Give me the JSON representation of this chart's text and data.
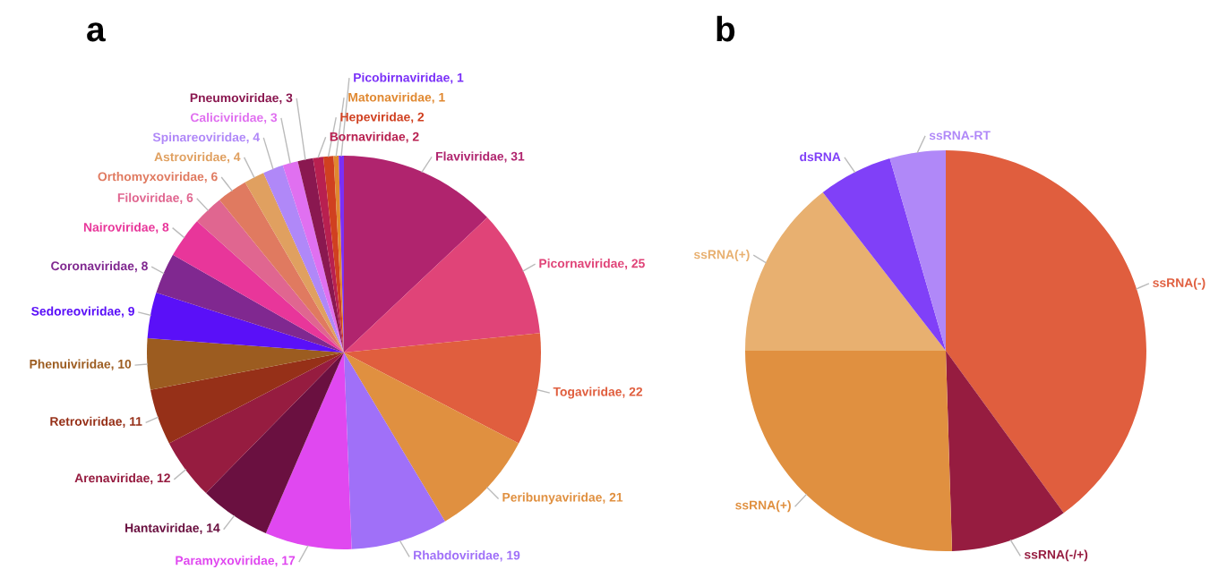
{
  "chart_data": [
    {
      "type": "pie",
      "title": "a",
      "legend": false,
      "categories": [
        "Flaviviridae",
        "Picornaviridae",
        "Togaviridae",
        "Peribunyaviridae",
        "Rhabdoviridae",
        "Paramyxoviridae",
        "Hantaviridae",
        "Arenaviridae",
        "Retroviridae",
        "Phenuiviridae",
        "Sedoreoviridae",
        "Coronaviridae",
        "Nairoviridae",
        "Filoviridae",
        "Orthomyxoviridae",
        "Astroviridae",
        "Spinareoviridae",
        "Caliciviridae",
        "Pneumoviridae",
        "Bornaviridae",
        "Hepeviridae",
        "Matonaviridae",
        "Picobirnaviridae"
      ],
      "values": [
        31,
        25,
        22,
        21,
        19,
        17,
        14,
        12,
        11,
        10,
        9,
        8,
        8,
        6,
        6,
        4,
        4,
        3,
        3,
        2,
        2,
        1,
        1
      ],
      "value_labels": [
        ", 31",
        ", 25",
        ", 22",
        ", 21",
        ", 19",
        ", 17",
        ", 14",
        ", 12",
        ", 11",
        ", 10",
        ", 9",
        ", 8",
        ", 8",
        ", 6",
        ", 6",
        ", 4",
        ", 4",
        ", 3",
        ", 3",
        ", 2",
        ", 2",
        ", 1",
        ", 1"
      ],
      "colors": [
        "#b0246e",
        "#e04478",
        "#e05e3e",
        "#e09040",
        "#a070f8",
        "#e048f0",
        "#6a1040",
        "#961c40",
        "#963018",
        "#9c5c20",
        "#5a10f8",
        "#802890",
        "#e8369a",
        "#e06690",
        "#e07a60",
        "#e0a060",
        "#b088f8",
        "#e070f0",
        "#8a1850",
        "#b82050",
        "#d04020",
        "#e08830",
        "#7a30f8"
      ]
    },
    {
      "type": "pie",
      "title": "b",
      "legend": false,
      "categories": [
        "ssRNA(-)",
        "ssRNA(-/+)",
        "ssRNA(+)",
        "ssRNA(+)",
        "dsRNA",
        "ssRNA-RT"
      ],
      "values": [
        40,
        9.5,
        25.5,
        14.5,
        6,
        4.5
      ],
      "colors": [
        "#e05e3e",
        "#961c40",
        "#e09040",
        "#e8b070",
        "#8040f8",
        "#b088f8"
      ]
    }
  ]
}
